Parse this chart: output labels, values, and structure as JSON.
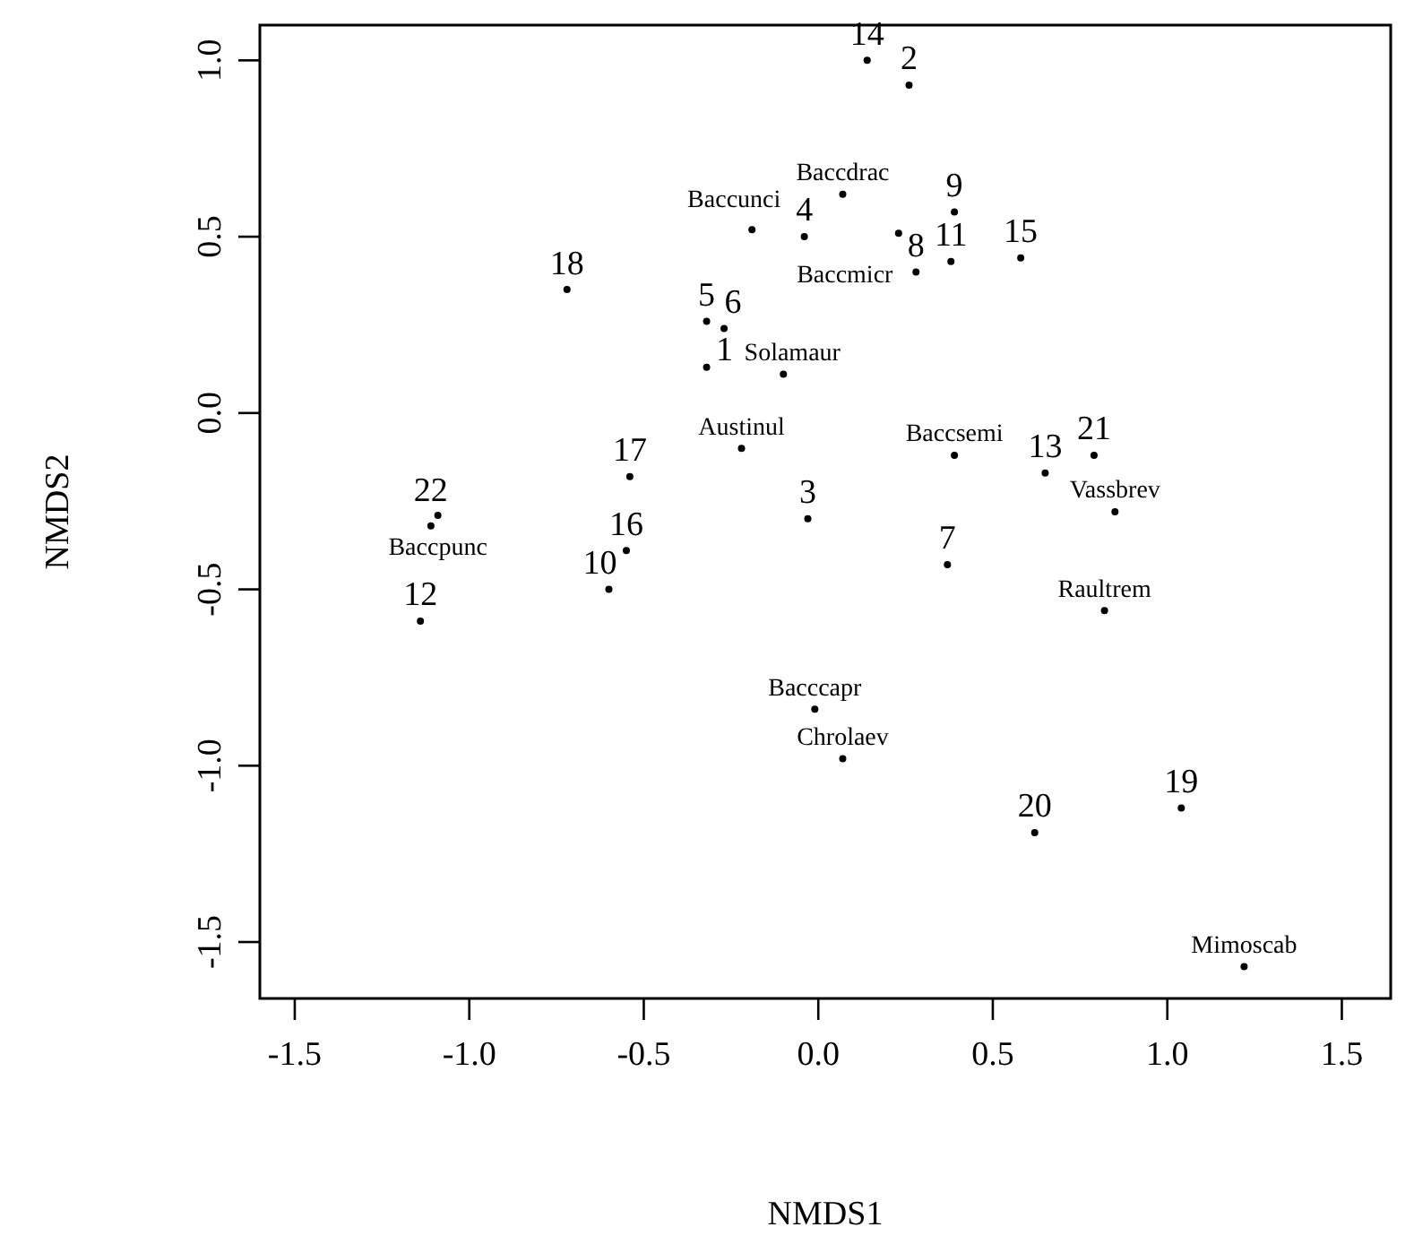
{
  "chart_data": {
    "type": "scatter",
    "xlabel": "NMDS1",
    "ylabel": "NMDS2",
    "xlim": [
      -1.6,
      1.64
    ],
    "ylim": [
      -1.66,
      1.1
    ],
    "xticks": [
      {
        "value": -1.5,
        "label": "-1.5"
      },
      {
        "value": -1,
        "label": "-1.0"
      },
      {
        "value": -0.5,
        "label": "-0.5"
      },
      {
        "value": 0,
        "label": "0.0"
      },
      {
        "value": 0.5,
        "label": "0.5"
      },
      {
        "value": 1,
        "label": "1.0"
      },
      {
        "value": 1.5,
        "label": "1.5"
      }
    ],
    "yticks": [
      {
        "value": -1.5,
        "label": "-1.5"
      },
      {
        "value": -1,
        "label": "-1.0"
      },
      {
        "value": -0.5,
        "label": "-0.5"
      },
      {
        "value": 0,
        "label": "0.0"
      },
      {
        "value": 0.5,
        "label": "0.5"
      },
      {
        "value": 1,
        "label": "1.0"
      }
    ],
    "grid": false,
    "marker": "circle",
    "series": [
      {
        "color": "#000000",
        "x": [
          -0.32,
          0.26,
          -0.03,
          -0.04,
          -0.32,
          -0.27,
          0.37,
          0.28,
          0.39,
          -0.6,
          0.38,
          -1.14,
          0.65,
          0.14,
          0.58,
          -0.55,
          -0.54,
          -0.72,
          1.04,
          0.62,
          0.79,
          -1.11
        ],
        "values": [
          0.13,
          0.93,
          -0.3,
          0.5,
          0.26,
          0.24,
          -0.43,
          0.4,
          0.57,
          -0.5,
          0.43,
          -0.59,
          -0.17,
          1.0,
          0.44,
          -0.39,
          -0.18,
          0.35,
          -1.12,
          -1.19,
          -0.12,
          -0.32
        ]
      },
      {
        "color": "#000000",
        "x": [
          0.07,
          -0.19,
          0.23,
          -0.1,
          -0.22,
          0.39,
          0.85,
          -1.09,
          0.82,
          -0.01,
          0.07,
          1.22
        ],
        "values": [
          0.62,
          0.52,
          0.51,
          0.11,
          -0.1,
          -0.12,
          -0.28,
          -0.29,
          -0.56,
          -0.84,
          -0.98,
          -1.57
        ]
      }
    ],
    "annotations": [
      {
        "text": "1",
        "x": -0.32,
        "y": 0.13
      },
      {
        "text": "2",
        "x": 0.26,
        "y": 0.93
      },
      {
        "text": "3",
        "x": -0.03,
        "y": -0.3
      },
      {
        "text": "4",
        "x": -0.04,
        "y": 0.5
      },
      {
        "text": "5",
        "x": -0.32,
        "y": 0.26
      },
      {
        "text": "6",
        "x": -0.27,
        "y": 0.24
      },
      {
        "text": "7",
        "x": 0.37,
        "y": -0.43
      },
      {
        "text": "8",
        "x": 0.28,
        "y": 0.4
      },
      {
        "text": "9",
        "x": 0.39,
        "y": 0.57
      },
      {
        "text": "10",
        "x": -0.6,
        "y": -0.5
      },
      {
        "text": "11",
        "x": 0.38,
        "y": 0.43
      },
      {
        "text": "12",
        "x": -1.14,
        "y": -0.59
      },
      {
        "text": "13",
        "x": 0.65,
        "y": -0.17
      },
      {
        "text": "14",
        "x": 0.14,
        "y": 1.0
      },
      {
        "text": "15",
        "x": 0.58,
        "y": 0.44
      },
      {
        "text": "16",
        "x": -0.55,
        "y": -0.39
      },
      {
        "text": "17",
        "x": -0.54,
        "y": -0.18
      },
      {
        "text": "18",
        "x": -0.72,
        "y": 0.35
      },
      {
        "text": "19",
        "x": 1.04,
        "y": -1.12
      },
      {
        "text": "20",
        "x": 0.62,
        "y": -1.19
      },
      {
        "text": "21",
        "x": 0.79,
        "y": -0.12
      },
      {
        "text": "22",
        "x": -1.11,
        "y": -0.32
      },
      {
        "text": "Baccdrac",
        "x": 0.07,
        "y": 0.62
      },
      {
        "text": "Baccunci",
        "x": -0.19,
        "y": 0.52
      },
      {
        "text": "Baccmicr",
        "x": 0.23,
        "y": 0.51
      },
      {
        "text": "Solamaur",
        "x": -0.1,
        "y": 0.11
      },
      {
        "text": "Austinul",
        "x": -0.22,
        "y": -0.1
      },
      {
        "text": "Baccsemi",
        "x": 0.39,
        "y": -0.12
      },
      {
        "text": "Vassbrev",
        "x": 0.85,
        "y": -0.28
      },
      {
        "text": "Baccpunc",
        "x": -1.09,
        "y": -0.29
      },
      {
        "text": "Raultrem",
        "x": 0.82,
        "y": -0.56
      },
      {
        "text": "Bacccapr",
        "x": -0.01,
        "y": -0.84
      },
      {
        "text": "Chrolaev",
        "x": 0.07,
        "y": -0.98
      },
      {
        "text": "Mimoscab",
        "x": 1.22,
        "y": -1.57
      }
    ]
  }
}
